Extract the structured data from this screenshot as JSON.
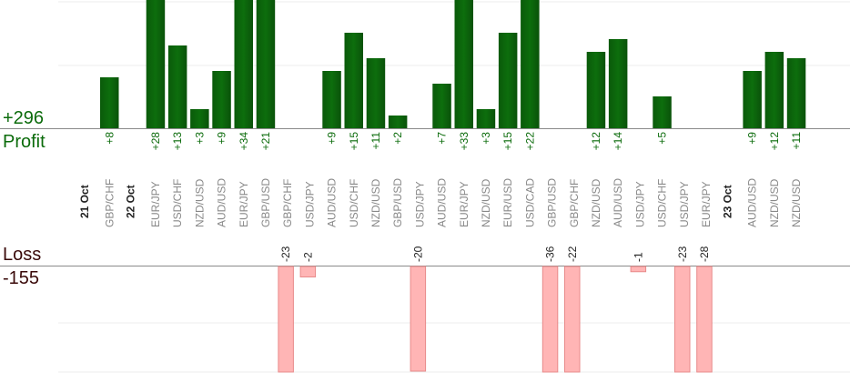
{
  "summary": {
    "profit_total": "+296",
    "profit_label": "Profit",
    "loss_label": "Loss",
    "loss_total": "-155"
  },
  "colors": {
    "profit_bar": "#0d6e0d",
    "profit_text": "#0b6b0b",
    "loss_bar": "#ffb5b5",
    "loss_bar_edge": "#e88a8a",
    "loss_text": "#3a0a0a"
  },
  "chart_data": {
    "type": "bar",
    "profit_axis_max": 20,
    "loss_axis_max": 20,
    "grid": true,
    "dates": [
      {
        "label": "21 Oct",
        "before_index": 0
      },
      {
        "label": "22 Oct",
        "before_index": 1
      },
      {
        "label": "23 Oct",
        "before_index": 27
      }
    ],
    "trades": [
      {
        "pair": "GBP/CHF",
        "value": 8
      },
      {
        "pair": "EUR/JPY",
        "value": 28
      },
      {
        "pair": "USD/CHF",
        "value": 13
      },
      {
        "pair": "NZD/USD",
        "value": 3
      },
      {
        "pair": "AUD/USD",
        "value": 9
      },
      {
        "pair": "EUR/JPY",
        "value": 34
      },
      {
        "pair": "GBP/USD",
        "value": 21
      },
      {
        "pair": "GBP/CHF",
        "value": -23
      },
      {
        "pair": "USD/JPY",
        "value": -2
      },
      {
        "pair": "AUD/USD",
        "value": 9
      },
      {
        "pair": "USD/CHF",
        "value": 15
      },
      {
        "pair": "NZD/USD",
        "value": 11
      },
      {
        "pair": "GBP/USD",
        "value": 2
      },
      {
        "pair": "USD/JPY",
        "value": -20
      },
      {
        "pair": "AUD/USD",
        "value": 7
      },
      {
        "pair": "EUR/JPY",
        "value": 33
      },
      {
        "pair": "NZD/USD",
        "value": 3
      },
      {
        "pair": "EUR/USD",
        "value": 15
      },
      {
        "pair": "USD/CAD",
        "value": 22
      },
      {
        "pair": "GBP/USD",
        "value": -36
      },
      {
        "pair": "GBP/CHF",
        "value": -22
      },
      {
        "pair": "NZD/USD",
        "value": 12
      },
      {
        "pair": "AUD/USD",
        "value": 14
      },
      {
        "pair": "USD/JPY",
        "value": -1
      },
      {
        "pair": "USD/CHF",
        "value": 5
      },
      {
        "pair": "USD/JPY",
        "value": -23
      },
      {
        "pair": "EUR/JPY",
        "value": -28
      },
      {
        "pair": "AUD/USD",
        "value": 9
      },
      {
        "pair": "NZD/USD",
        "value": 12
      },
      {
        "pair": "NZD/USD",
        "value": 11
      }
    ]
  }
}
